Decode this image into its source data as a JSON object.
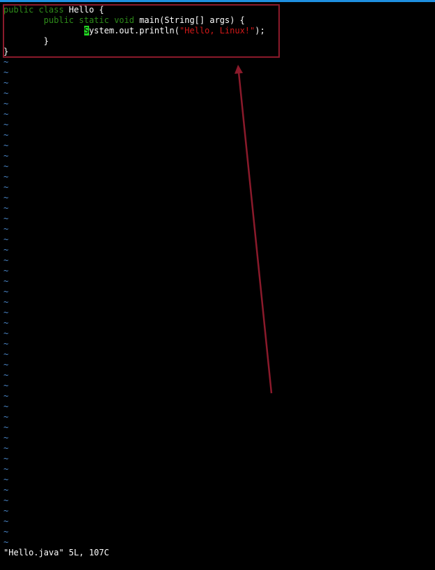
{
  "code": {
    "l1": {
      "kw": "public class",
      "rest": " Hello {"
    },
    "l2": {
      "indent": "        ",
      "kw": "public static void",
      "rest": " main(String[] args) {"
    },
    "l3": {
      "indent": "                ",
      "cursor_char": "S",
      "pre": "ystem.out.println(",
      "str": "\"Hello, Linux!\"",
      "post": ");"
    },
    "l4": {
      "text": "        }"
    },
    "l5": {
      "text": "}"
    }
  },
  "empty_line_marker": "~",
  "empty_line_count": 47,
  "status_line": "\"Hello.java\" 5L, 107C",
  "colors": {
    "keyword": "#2e8b1a",
    "string": "#d01818",
    "cursor": "#22d622",
    "tilde": "#4a86c8",
    "annotation": "#8b1a2b"
  }
}
